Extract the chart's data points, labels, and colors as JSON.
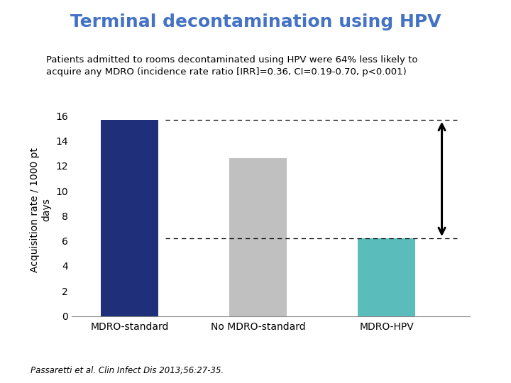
{
  "title": "Terminal decontamination using HPV",
  "subtitle_line1": "Patients admitted to rooms decontaminated using HPV were 64% less likely to",
  "subtitle_line2": "acquire any MDRO (incidence rate ratio [IRR]=0.36, CI=0.19-0.70, p<0.001)",
  "categories": [
    "MDRO-standard",
    "No MDRO-standard",
    "MDRO-HPV"
  ],
  "values": [
    15.7,
    12.6,
    6.2
  ],
  "bar_colors": [
    "#1F2F7A",
    "#C0C0C0",
    "#5BBCBC"
  ],
  "ylabel": "Acquisition rate / 1000 pt\ndays",
  "ylim": [
    0,
    17
  ],
  "yticks": [
    0,
    2,
    4,
    6,
    8,
    10,
    12,
    14,
    16
  ],
  "dashed_line_high": 15.7,
  "dashed_line_low": 6.2,
  "title_color": "#4472C4",
  "title_fontsize": 18,
  "subtitle_fontsize": 9.5,
  "ylabel_fontsize": 10,
  "tick_fontsize": 10,
  "xlabel_fontsize": 10,
  "footnote": "Passaretti et al. Clin Infect Dis 2013;56:27-35.",
  "background_color": "#FFFFFF",
  "bar_width": 0.45
}
